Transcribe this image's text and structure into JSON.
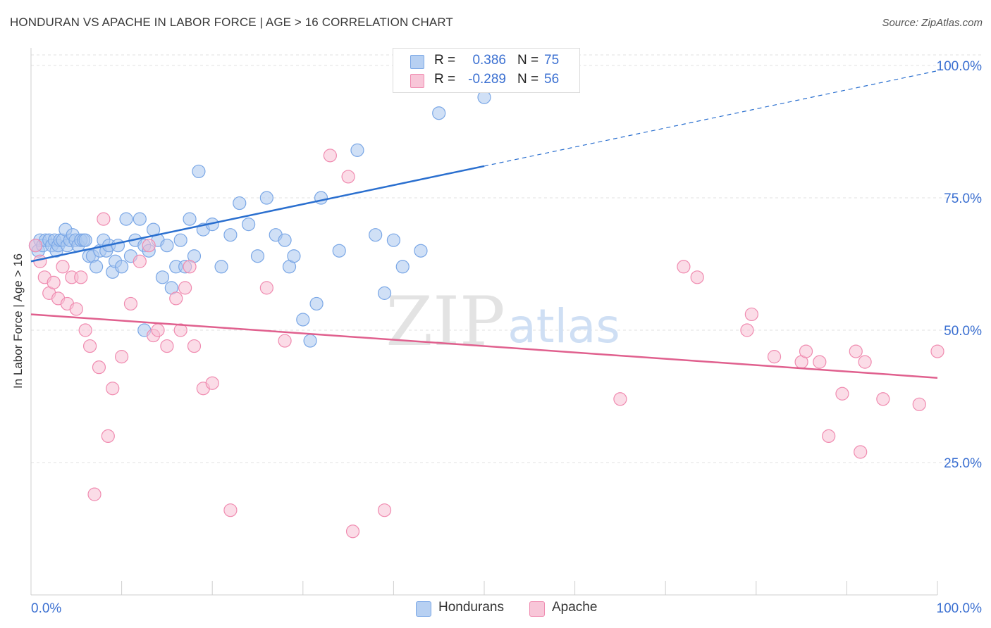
{
  "header": {
    "title": "HONDURAN VS APACHE IN LABOR FORCE | AGE > 16 CORRELATION CHART",
    "source": "Source: ZipAtlas.com"
  },
  "watermark": {
    "zip": "ZIP",
    "atlas": "atlas"
  },
  "legend": {
    "rows": [
      {
        "r_label": "R =",
        "r_value": "0.386",
        "n_label": "N =",
        "n_value": "75"
      },
      {
        "r_label": "R =",
        "r_value": "-0.289",
        "n_label": "N =",
        "n_value": "56"
      }
    ],
    "bottom": [
      "Hondurans",
      "Apache"
    ]
  },
  "chart_data": {
    "type": "scatter",
    "title": "HONDURAN VS APACHE IN LABOR FORCE | AGE > 16 CORRELATION CHART",
    "ylabel": "In Labor Force | Age > 16",
    "xlabel": "",
    "xlim": [
      0,
      100
    ],
    "ylim": [
      0,
      102
    ],
    "x_tick_labels": [
      "0.0%",
      "100.0%"
    ],
    "y_ticks": [
      25,
      50,
      75,
      100
    ],
    "y_tick_labels": [
      "25.0%",
      "50.0%",
      "75.0%",
      "100.0%"
    ],
    "grid": true,
    "legend_position": "top-center",
    "series": [
      {
        "name": "Hondurans",
        "color": "#7aa7e6",
        "fill": "#a9c6ef",
        "line_color": "#2a6fcf",
        "r": 0.386,
        "n": 75,
        "trend": {
          "x0": 0,
          "y0": 63,
          "x1": 50,
          "y1": 81,
          "x_dash_end": 100,
          "y_dash_end": 99
        },
        "points": [
          [
            0.5,
            66
          ],
          [
            0.8,
            65
          ],
          [
            1.0,
            67
          ],
          [
            1.3,
            66
          ],
          [
            1.6,
            67
          ],
          [
            2.0,
            67
          ],
          [
            2.3,
            66
          ],
          [
            2.6,
            67
          ],
          [
            2.8,
            65
          ],
          [
            3.0,
            66
          ],
          [
            3.2,
            67
          ],
          [
            3.5,
            67
          ],
          [
            3.8,
            69
          ],
          [
            4.0,
            66
          ],
          [
            4.3,
            67
          ],
          [
            4.6,
            68
          ],
          [
            4.9,
            67
          ],
          [
            5.2,
            66
          ],
          [
            5.5,
            67
          ],
          [
            5.8,
            67
          ],
          [
            6.0,
            67
          ],
          [
            6.4,
            64
          ],
          [
            6.8,
            64
          ],
          [
            7.2,
            62
          ],
          [
            7.6,
            65
          ],
          [
            8.0,
            67
          ],
          [
            8.3,
            65
          ],
          [
            8.6,
            66
          ],
          [
            9.0,
            61
          ],
          [
            9.3,
            63
          ],
          [
            9.6,
            66
          ],
          [
            10.0,
            62
          ],
          [
            10.5,
            71
          ],
          [
            11.0,
            64
          ],
          [
            11.5,
            67
          ],
          [
            12.0,
            71
          ],
          [
            12.5,
            66
          ],
          [
            13.0,
            65
          ],
          [
            13.5,
            69
          ],
          [
            14.0,
            67
          ],
          [
            14.5,
            60
          ],
          [
            15.0,
            66
          ],
          [
            15.5,
            58
          ],
          [
            16.0,
            62
          ],
          [
            16.5,
            67
          ],
          [
            17.0,
            62
          ],
          [
            17.5,
            71
          ],
          [
            18.0,
            64
          ],
          [
            18.5,
            80
          ],
          [
            19.0,
            69
          ],
          [
            20.0,
            70
          ],
          [
            21.0,
            62
          ],
          [
            22.0,
            68
          ],
          [
            23.0,
            74
          ],
          [
            24.0,
            70
          ],
          [
            25.0,
            64
          ],
          [
            26.0,
            75
          ],
          [
            27.0,
            68
          ],
          [
            28.0,
            67
          ],
          [
            28.5,
            62
          ],
          [
            29.0,
            64
          ],
          [
            30.0,
            52
          ],
          [
            30.8,
            48
          ],
          [
            31.5,
            55
          ],
          [
            32.0,
            75
          ],
          [
            34.0,
            65
          ],
          [
            36.0,
            84
          ],
          [
            38.0,
            68
          ],
          [
            39.0,
            57
          ],
          [
            40.0,
            67
          ],
          [
            43.0,
            65
          ],
          [
            45.0,
            91
          ],
          [
            50.0,
            94
          ],
          [
            41.0,
            62
          ],
          [
            12.5,
            50
          ]
        ]
      },
      {
        "name": "Apache",
        "color": "#f08bb0",
        "fill": "#f7c0d4",
        "line_color": "#e0608e",
        "r": -0.289,
        "n": 56,
        "trend": {
          "x0": 0,
          "y0": 53,
          "x1": 100,
          "y1": 41
        },
        "points": [
          [
            0.5,
            66
          ],
          [
            1.0,
            63
          ],
          [
            1.5,
            60
          ],
          [
            2.0,
            57
          ],
          [
            2.5,
            59
          ],
          [
            3.0,
            56
          ],
          [
            3.5,
            62
          ],
          [
            4.0,
            55
          ],
          [
            4.5,
            60
          ],
          [
            5.0,
            54
          ],
          [
            5.5,
            60
          ],
          [
            6.0,
            50
          ],
          [
            6.5,
            47
          ],
          [
            7.0,
            19
          ],
          [
            7.5,
            43
          ],
          [
            8.0,
            71
          ],
          [
            8.5,
            30
          ],
          [
            9.0,
            39
          ],
          [
            10.0,
            45
          ],
          [
            11.0,
            55
          ],
          [
            12.0,
            63
          ],
          [
            13.0,
            66
          ],
          [
            13.5,
            49
          ],
          [
            14.0,
            50
          ],
          [
            15.0,
            47
          ],
          [
            16.0,
            56
          ],
          [
            16.5,
            50
          ],
          [
            17.0,
            58
          ],
          [
            17.5,
            62
          ],
          [
            18.0,
            47
          ],
          [
            19.0,
            39
          ],
          [
            20.0,
            40
          ],
          [
            22.0,
            16
          ],
          [
            26.0,
            58
          ],
          [
            28.0,
            48
          ],
          [
            33.0,
            83
          ],
          [
            35.0,
            79
          ],
          [
            35.5,
            12
          ],
          [
            39.0,
            16
          ],
          [
            65.0,
            37
          ],
          [
            72.0,
            62
          ],
          [
            73.5,
            60
          ],
          [
            79.0,
            50
          ],
          [
            79.5,
            53
          ],
          [
            82.0,
            45
          ],
          [
            85.0,
            44
          ],
          [
            85.5,
            46
          ],
          [
            87.0,
            44
          ],
          [
            88.0,
            30
          ],
          [
            89.5,
            38
          ],
          [
            91.0,
            46
          ],
          [
            91.5,
            27
          ],
          [
            92.0,
            44
          ],
          [
            94.0,
            37
          ],
          [
            98.0,
            36
          ],
          [
            100.0,
            46
          ]
        ]
      }
    ]
  }
}
